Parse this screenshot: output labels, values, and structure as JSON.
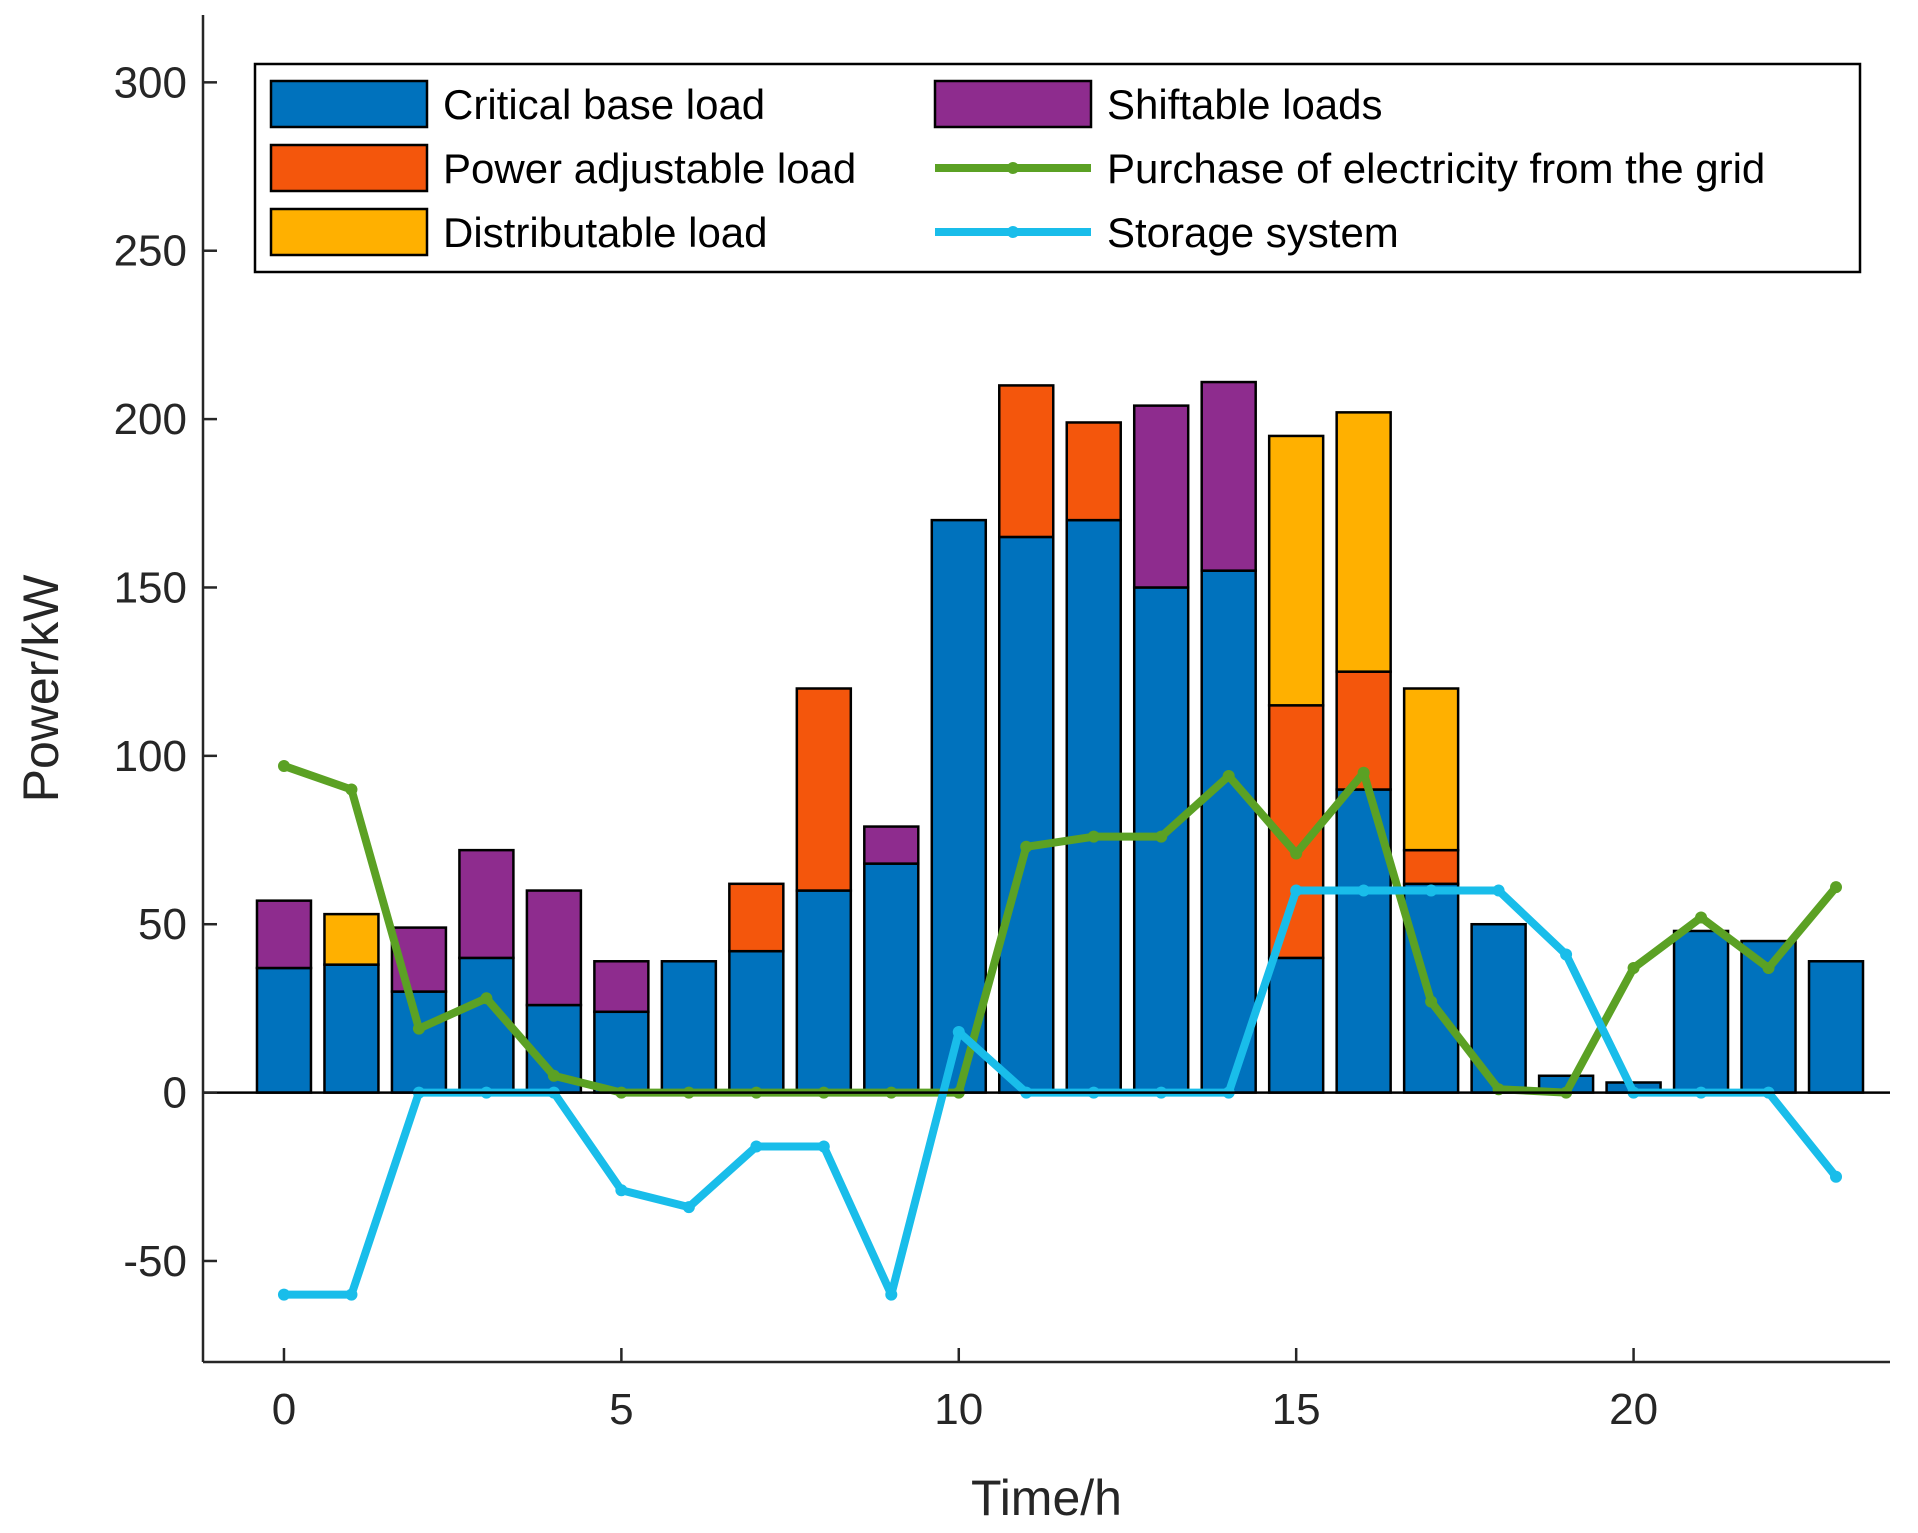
{
  "chart_data": {
    "type": "bar",
    "stacked": true,
    "title": "",
    "xlabel": "Time/h",
    "ylabel": "Power/kW",
    "xlim": [
      -1.2,
      23.8
    ],
    "ylim": [
      -80,
      320
    ],
    "xticks": [
      0,
      5,
      10,
      15,
      20
    ],
    "yticks": [
      -50,
      0,
      50,
      100,
      150,
      200,
      250,
      300
    ],
    "x": [
      0,
      1,
      2,
      3,
      4,
      5,
      6,
      7,
      8,
      9,
      10,
      11,
      12,
      13,
      14,
      15,
      16,
      17,
      18,
      19,
      20,
      21,
      22,
      23
    ],
    "series": [
      {
        "name": "Critical base load",
        "kind": "bar",
        "color": "#0072BD",
        "values": [
          37,
          38,
          30,
          40,
          26,
          24,
          39,
          42,
          60,
          68,
          170,
          165,
          170,
          150,
          155,
          40,
          90,
          62,
          50,
          5,
          3,
          48,
          45,
          39
        ]
      },
      {
        "name": "Power adjustable load",
        "kind": "bar",
        "color": "#F4560C",
        "values": [
          0,
          0,
          0,
          0,
          0,
          0,
          0,
          20,
          60,
          0,
          0,
          45,
          29,
          0,
          0,
          75,
          35,
          10,
          0,
          0,
          0,
          0,
          0,
          0
        ]
      },
      {
        "name": "Distributable load",
        "kind": "bar",
        "color": "#FFB000",
        "values": [
          0,
          15,
          0,
          0,
          0,
          0,
          0,
          0,
          0,
          0,
          0,
          0,
          0,
          0,
          0,
          80,
          77,
          48,
          0,
          0,
          0,
          0,
          0,
          0
        ]
      },
      {
        "name": "Shiftable loads",
        "kind": "bar",
        "color": "#8E2C8E",
        "values": [
          20,
          0,
          19,
          32,
          34,
          15,
          0,
          0,
          0,
          11,
          0,
          0,
          0,
          54,
          56,
          0,
          0,
          0,
          0,
          0,
          0,
          0,
          0,
          0
        ]
      },
      {
        "name": "Purchase of electricity from the grid",
        "kind": "line",
        "color": "#5BA124",
        "values": [
          97,
          90,
          19,
          28,
          5,
          0,
          0,
          0,
          0,
          0,
          0,
          73,
          76,
          76,
          94,
          71,
          95,
          27,
          1,
          0,
          37,
          52,
          37,
          61
        ]
      },
      {
        "name": "Storage system",
        "kind": "line",
        "color": "#19BDEA",
        "values": [
          -60,
          -60,
          0,
          0,
          0,
          -29,
          -34,
          -16,
          -16,
          -60,
          18,
          0,
          0,
          0,
          0,
          60,
          60,
          60,
          60,
          41,
          0,
          0,
          0,
          -25
        ]
      }
    ],
    "legend": {
      "location": "top",
      "columns": 2
    }
  }
}
